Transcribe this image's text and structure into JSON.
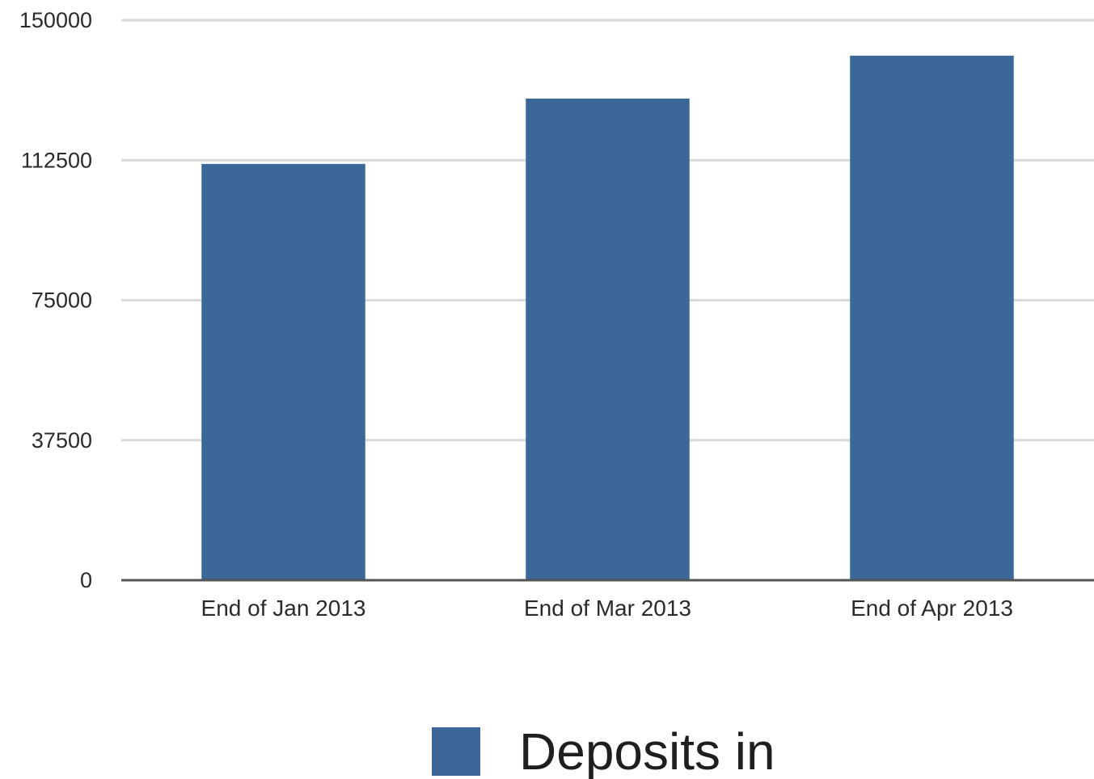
{
  "chart_data": {
    "type": "bar",
    "title": "",
    "xlabel": "",
    "ylabel": "",
    "categories": [
      "End of Jan 2013",
      "End of Mar 2013",
      "End of Apr 2013"
    ],
    "series": [
      {
        "name": "Deposits in",
        "values": [
          111500,
          129000,
          140500
        ]
      }
    ],
    "ylim": [
      0,
      150000
    ],
    "yticks": [
      "0",
      "37500",
      "75000",
      "112500",
      "150000"
    ],
    "grid": true,
    "legend_position": "bottom",
    "colors": {
      "bar": "#3b6899",
      "grid": "#d9d9d9",
      "axis": "#555555"
    }
  }
}
